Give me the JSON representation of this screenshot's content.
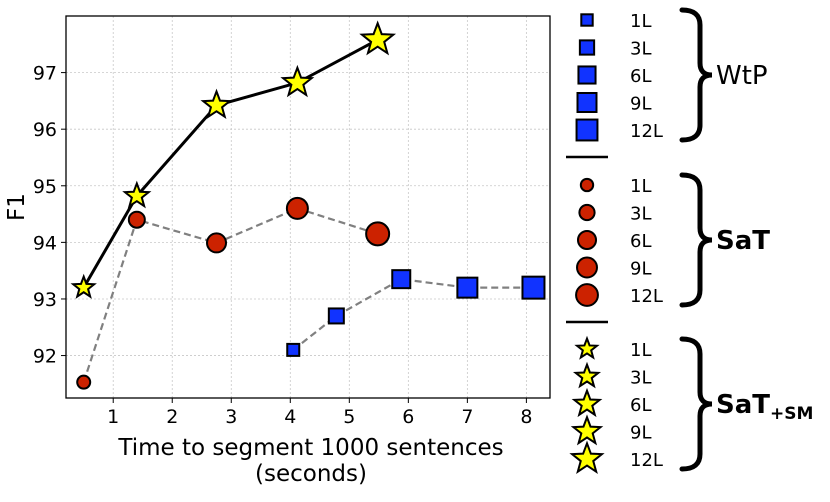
{
  "chart_data": {
    "type": "scatter",
    "xlabel_line1": "Time to segment 1000 sentences",
    "xlabel_line2": "(seconds)",
    "ylabel": "F1",
    "xlim": [
      0.2,
      8.4
    ],
    "ylim": [
      91.25,
      98.0
    ],
    "x_ticks": [
      1,
      2,
      3,
      4,
      5,
      6,
      7,
      8
    ],
    "y_ticks": [
      92,
      93,
      94,
      95,
      96,
      97
    ],
    "grid": true,
    "series": [
      {
        "name": "SaT+SM",
        "marker": "star",
        "line": "solid",
        "color": "#ffff00",
        "line_color": "#000000",
        "points": [
          {
            "x": 0.5,
            "y": 93.2,
            "size": "1L"
          },
          {
            "x": 1.4,
            "y": 94.82,
            "size": "3L"
          },
          {
            "x": 2.75,
            "y": 96.42,
            "size": "6L"
          },
          {
            "x": 4.12,
            "y": 96.82,
            "size": "9L"
          },
          {
            "x": 5.48,
            "y": 97.58,
            "size": "12L"
          }
        ]
      },
      {
        "name": "SaT",
        "marker": "circle",
        "line": "dashed",
        "color": "#cc2200",
        "line_color": "#808080",
        "points": [
          {
            "x": 0.5,
            "y": 91.53,
            "size": "1L"
          },
          {
            "x": 1.4,
            "y": 94.4,
            "size": "3L"
          },
          {
            "x": 2.75,
            "y": 93.99,
            "size": "6L"
          },
          {
            "x": 4.12,
            "y": 94.6,
            "size": "9L"
          },
          {
            "x": 5.48,
            "y": 94.15,
            "size": "12L"
          }
        ]
      },
      {
        "name": "WtP",
        "marker": "square",
        "line": "dashed",
        "color": "#1133ff",
        "line_color": "#808080",
        "points": [
          {
            "x": 4.05,
            "y": 92.1,
            "size": "1L"
          },
          {
            "x": 4.78,
            "y": 92.7,
            "size": "3L"
          },
          {
            "x": 5.88,
            "y": 93.35,
            "size": "6L"
          },
          {
            "x": 7.0,
            "y": 93.2,
            "size": "9L"
          },
          {
            "x": 8.12,
            "y": 93.2,
            "size": "12L"
          }
        ]
      }
    ],
    "legend": {
      "placement": "right",
      "groups": [
        {
          "name": "WtP",
          "label_main": "WtP",
          "label_sub": "",
          "bold": false,
          "marker": "square",
          "color": "#1133ff",
          "entries": [
            "1L",
            "3L",
            "6L",
            "9L",
            "12L"
          ]
        },
        {
          "name": "SaT",
          "label_main": "SaT",
          "label_sub": "",
          "bold": true,
          "marker": "circle",
          "color": "#cc2200",
          "entries": [
            "1L",
            "3L",
            "6L",
            "9L",
            "12L"
          ]
        },
        {
          "name": "SaT+SM",
          "label_main": "SaT",
          "label_sub": "+SM",
          "bold": true,
          "marker": "star",
          "color": "#ffff00",
          "entries": [
            "1L",
            "3L",
            "6L",
            "9L",
            "12L"
          ]
        }
      ]
    }
  }
}
